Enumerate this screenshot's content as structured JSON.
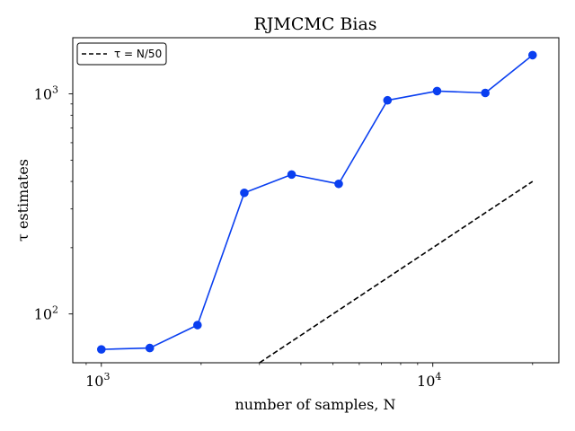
{
  "chart_data": {
    "type": "line",
    "title": "RJMCMC Bias",
    "xlabel": "number of samples, N",
    "ylabel": "τ estimates",
    "x_scale": "log",
    "y_scale": "log",
    "xlim": [
      820,
      24000
    ],
    "ylim": [
      60,
      1800
    ],
    "x_major_ticks": [
      {
        "value": 1000,
        "base": "10",
        "exp": "3"
      },
      {
        "value": 10000,
        "base": "10",
        "exp": "4"
      }
    ],
    "y_major_ticks": [
      {
        "value": 100,
        "base": "10",
        "exp": "2"
      },
      {
        "value": 1000,
        "base": "10",
        "exp": "3"
      }
    ],
    "grid": false,
    "legend_position": "upper-left",
    "series": [
      {
        "kind": "data",
        "color": "#0a3ff0",
        "marker": "circle",
        "linestyle": "solid",
        "x": [
          1000,
          1400,
          1950,
          2700,
          3750,
          5200,
          7300,
          10300,
          14400,
          20000
        ],
        "y": [
          69,
          70,
          89,
          355,
          430,
          390,
          935,
          1030,
          1010,
          1500
        ]
      },
      {
        "kind": "reference",
        "name": "τ = N/50",
        "color": "#000000",
        "marker": "none",
        "linestyle": "dashed",
        "x": [
          3000,
          20000
        ],
        "y": [
          60,
          400
        ]
      }
    ]
  }
}
